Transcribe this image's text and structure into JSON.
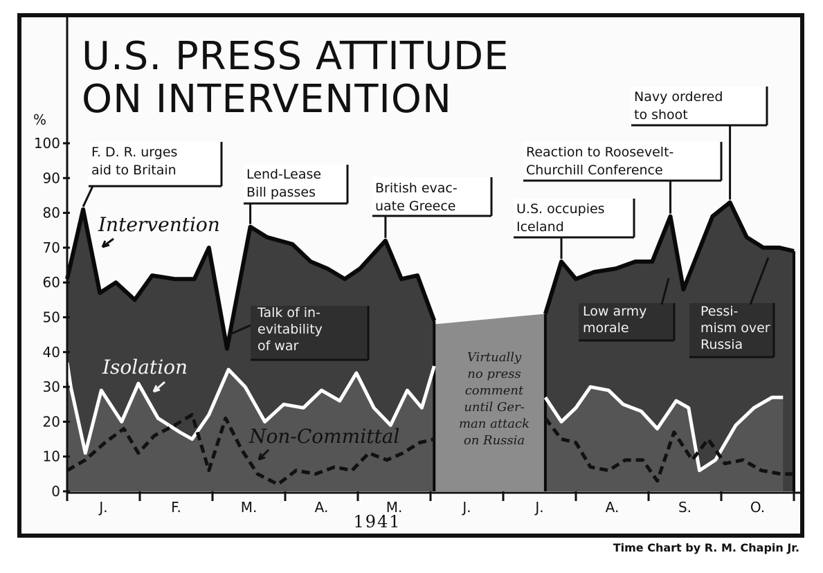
{
  "chart_data": {
    "type": "area",
    "title": "U.S. PRESS ATTITUDE ON INTERVENTION",
    "title_lines": [
      "U.S. PRESS ATTITUDE",
      "ON INTERVENTION"
    ],
    "ylabel": "%",
    "ylim": [
      0,
      100
    ],
    "yticks": [
      0,
      10,
      20,
      30,
      40,
      50,
      60,
      70,
      80,
      90,
      100
    ],
    "xlim": [
      0,
      10
    ],
    "year_label": "1941",
    "months": [
      {
        "label": "J.",
        "x": 0.5
      },
      {
        "label": "F.",
        "x": 1.5
      },
      {
        "label": "M.",
        "x": 2.5
      },
      {
        "label": "A.",
        "x": 3.5
      },
      {
        "label": "M.",
        "x": 4.5
      },
      {
        "label": "J.",
        "x": 5.5
      },
      {
        "label": "J.",
        "x": 6.5
      },
      {
        "label": "A.",
        "x": 7.5
      },
      {
        "label": "S.",
        "x": 8.5
      },
      {
        "label": "O.",
        "x": 9.5
      }
    ],
    "series": [
      {
        "name": "Intervention",
        "segments": [
          [
            [
              0.0,
              61
            ],
            [
              0.22,
              81
            ],
            [
              0.45,
              57
            ],
            [
              0.67,
              60
            ],
            [
              0.93,
              55
            ],
            [
              1.17,
              62
            ],
            [
              1.48,
              61
            ],
            [
              1.75,
              61
            ],
            [
              1.95,
              70
            ],
            [
              2.2,
              41
            ],
            [
              2.52,
              76
            ],
            [
              2.75,
              73
            ],
            [
              3.1,
              71
            ],
            [
              3.35,
              66
            ],
            [
              3.58,
              64
            ],
            [
              3.82,
              61
            ],
            [
              4.03,
              64
            ],
            [
              4.38,
              72
            ],
            [
              4.6,
              61
            ],
            [
              4.82,
              62
            ],
            [
              5.05,
              49
            ]
          ],
          [
            [
              6.58,
              51
            ],
            [
              6.8,
              66
            ],
            [
              7.0,
              61
            ],
            [
              7.25,
              63
            ],
            [
              7.55,
              64
            ],
            [
              7.82,
              66
            ],
            [
              8.05,
              66
            ],
            [
              8.3,
              79
            ],
            [
              8.48,
              58
            ],
            [
              8.88,
              79
            ],
            [
              9.12,
              83
            ],
            [
              9.35,
              73
            ],
            [
              9.58,
              70
            ],
            [
              9.8,
              70
            ],
            [
              10.0,
              69
            ]
          ]
        ]
      },
      {
        "name": "Isolation",
        "segments": [
          [
            [
              0.0,
              37
            ],
            [
              0.05,
              30
            ],
            [
              0.25,
              11
            ],
            [
              0.47,
              29
            ],
            [
              0.75,
              20
            ],
            [
              0.98,
              31
            ],
            [
              1.25,
              21
            ],
            [
              1.55,
              17
            ],
            [
              1.72,
              15
            ],
            [
              1.95,
              22
            ],
            [
              2.22,
              35
            ],
            [
              2.45,
              30
            ],
            [
              2.72,
              20
            ],
            [
              2.98,
              25
            ],
            [
              3.25,
              24
            ],
            [
              3.5,
              29
            ],
            [
              3.75,
              26
            ],
            [
              3.98,
              34
            ],
            [
              4.22,
              24
            ],
            [
              4.45,
              19
            ],
            [
              4.68,
              29
            ],
            [
              4.88,
              24
            ],
            [
              5.05,
              36
            ]
          ],
          [
            [
              6.58,
              27
            ],
            [
              6.8,
              20
            ],
            [
              7.0,
              24
            ],
            [
              7.2,
              30
            ],
            [
              7.45,
              29
            ],
            [
              7.65,
              25
            ],
            [
              7.9,
              23
            ],
            [
              8.12,
              18
            ],
            [
              8.38,
              26
            ],
            [
              8.55,
              24
            ],
            [
              8.7,
              6
            ],
            [
              8.92,
              9
            ],
            [
              9.2,
              19
            ],
            [
              9.45,
              24
            ],
            [
              9.7,
              27
            ],
            [
              9.85,
              27
            ]
          ]
        ]
      },
      {
        "name": "Non-Committal",
        "segments": [
          [
            [
              0.0,
              6
            ],
            [
              0.25,
              9
            ],
            [
              0.52,
              14
            ],
            [
              0.78,
              18
            ],
            [
              0.98,
              11
            ],
            [
              1.2,
              16
            ],
            [
              1.48,
              19
            ],
            [
              1.72,
              22
            ],
            [
              1.95,
              6
            ],
            [
              2.18,
              21
            ],
            [
              2.4,
              12
            ],
            [
              2.62,
              5
            ],
            [
              2.9,
              2
            ],
            [
              3.15,
              6
            ],
            [
              3.42,
              5
            ],
            [
              3.68,
              7
            ],
            [
              3.92,
              6
            ],
            [
              4.15,
              11
            ],
            [
              4.4,
              9
            ],
            [
              4.62,
              11
            ],
            [
              4.85,
              14
            ],
            [
              5.05,
              15
            ]
          ],
          [
            [
              6.58,
              21
            ],
            [
              6.8,
              15
            ],
            [
              7.0,
              14
            ],
            [
              7.2,
              7
            ],
            [
              7.45,
              6
            ],
            [
              7.68,
              9
            ],
            [
              7.92,
              9
            ],
            [
              8.12,
              3
            ],
            [
              8.35,
              17
            ],
            [
              8.6,
              9
            ],
            [
              8.82,
              15
            ],
            [
              9.05,
              8
            ],
            [
              9.3,
              9
            ],
            [
              9.55,
              6
            ],
            [
              9.82,
              5
            ],
            [
              10.0,
              5
            ]
          ]
        ]
      }
    ],
    "no_data_band": {
      "x_start": 5.05,
      "x_end": 6.58,
      "top_start": 48,
      "top_end": 51
    },
    "series_labels": [
      {
        "text": "Intervention"
      },
      {
        "text": "Isolation"
      },
      {
        "text": "Non-Committal"
      }
    ],
    "annotations": [
      {
        "text_lines": [
          "F. D. R. urges",
          "aid to Britain"
        ],
        "x": 0.22,
        "y": 81
      },
      {
        "text_lines": [
          "Lend-Lease",
          "Bill passes"
        ],
        "x": 2.52,
        "y": 76
      },
      {
        "text_lines": [
          "British evac-",
          "uate Greece"
        ],
        "x": 4.38,
        "y": 72
      },
      {
        "text_lines": [
          "U.S. occupies",
          "Iceland"
        ],
        "x": 6.8,
        "y": 66
      },
      {
        "text_lines": [
          "Reaction to Roosevelt-",
          "Churchill Conference"
        ],
        "x": 8.3,
        "y": 79
      },
      {
        "text_lines": [
          "Navy ordered",
          "to shoot"
        ],
        "x": 9.12,
        "y": 83
      },
      {
        "text_lines": [
          "Talk of in-",
          "evitability",
          "of war"
        ],
        "x": 2.2,
        "y": 41
      },
      {
        "text_lines": [
          "Low army",
          "morale"
        ],
        "x": 8.1,
        "y": 58
      },
      {
        "text_lines": [
          "Pessi-",
          "mism over",
          "Russia"
        ],
        "x": 9.1,
        "y": 68
      }
    ],
    "gap_note_lines": [
      "Virtually",
      "no press",
      "comment",
      "until Ger-",
      "man attack",
      "on Russia"
    ],
    "credit": "Time Chart by R. M. Chapin Jr."
  },
  "colors": {
    "intervention_fill": "#3e3e3e",
    "lower_fill": "#555555",
    "band_fill": "#8c8c8c",
    "isolation_line": "#ffffff",
    "noncommittal_line": "#111111",
    "frame": "#111111"
  }
}
